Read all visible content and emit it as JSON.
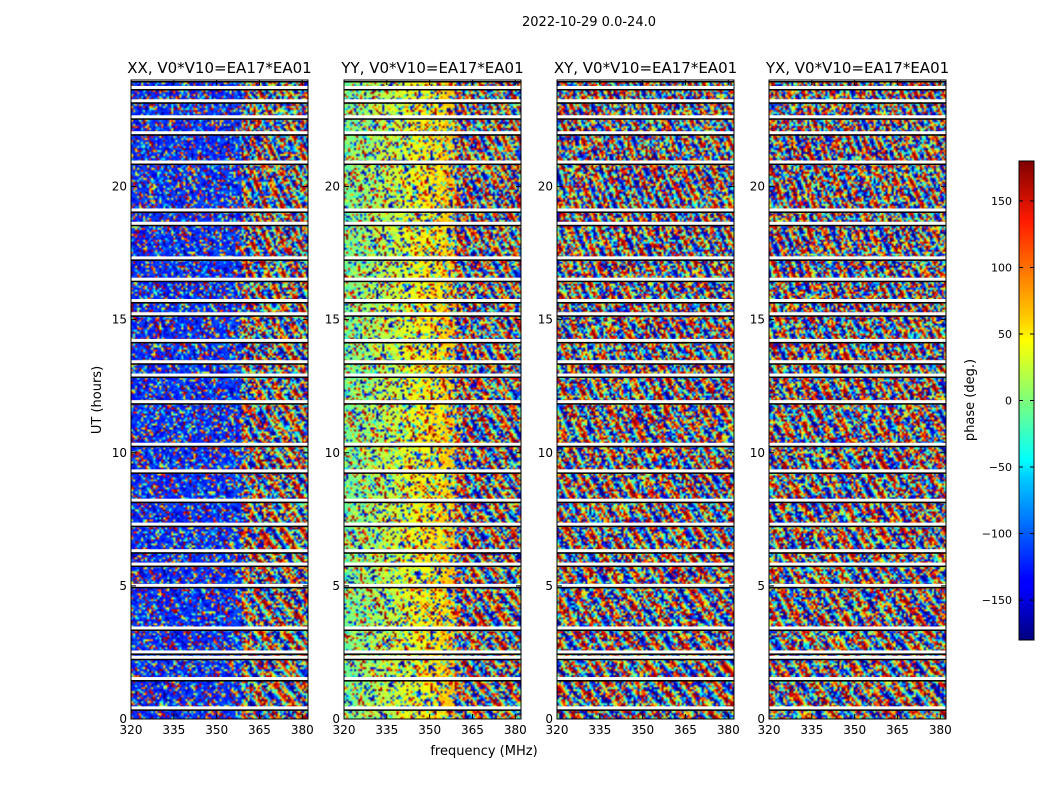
{
  "chart_data": {
    "type": "heatmap",
    "suptitle": "2022-10-29 0.0-24.0",
    "xlabel": "frequency (MHz)",
    "ylabel": "UT (hours)",
    "xlim": [
      320,
      382
    ],
    "ylim": [
      0,
      24
    ],
    "xticks": [
      320,
      335,
      350,
      365,
      380
    ],
    "yticks": [
      0,
      5,
      10,
      15,
      20
    ],
    "panels": [
      {
        "title": "XX, V0*V10=EA17*EA01"
      },
      {
        "title": "YY, V0*V10=EA17*EA01"
      },
      {
        "title": "XY, V0*V10=EA17*EA01"
      },
      {
        "title": "YX, V0*V10=EA17*EA01"
      }
    ],
    "colorbar": {
      "label": "phase (deg.)",
      "min": -180,
      "max": 180,
      "ticks": [
        -150,
        -100,
        -50,
        0,
        50,
        100,
        150
      ],
      "colormap": "jet"
    },
    "flagged_gap_hours": [
      0.4,
      1.5,
      2.3,
      2.5,
      3.4,
      5.0,
      5.8,
      6.3,
      7.3,
      8.2,
      9.3,
      10.3,
      11.9,
      12.9,
      13.4,
      14.2,
      15.2,
      15.7,
      16.5,
      17.3,
      18.6,
      19.1,
      20.9,
      22.0,
      22.6,
      23.2,
      23.7,
      24.0
    ]
  },
  "colors": {
    "axis": "#000000",
    "text": "#000000",
    "background": "#ffffff"
  }
}
